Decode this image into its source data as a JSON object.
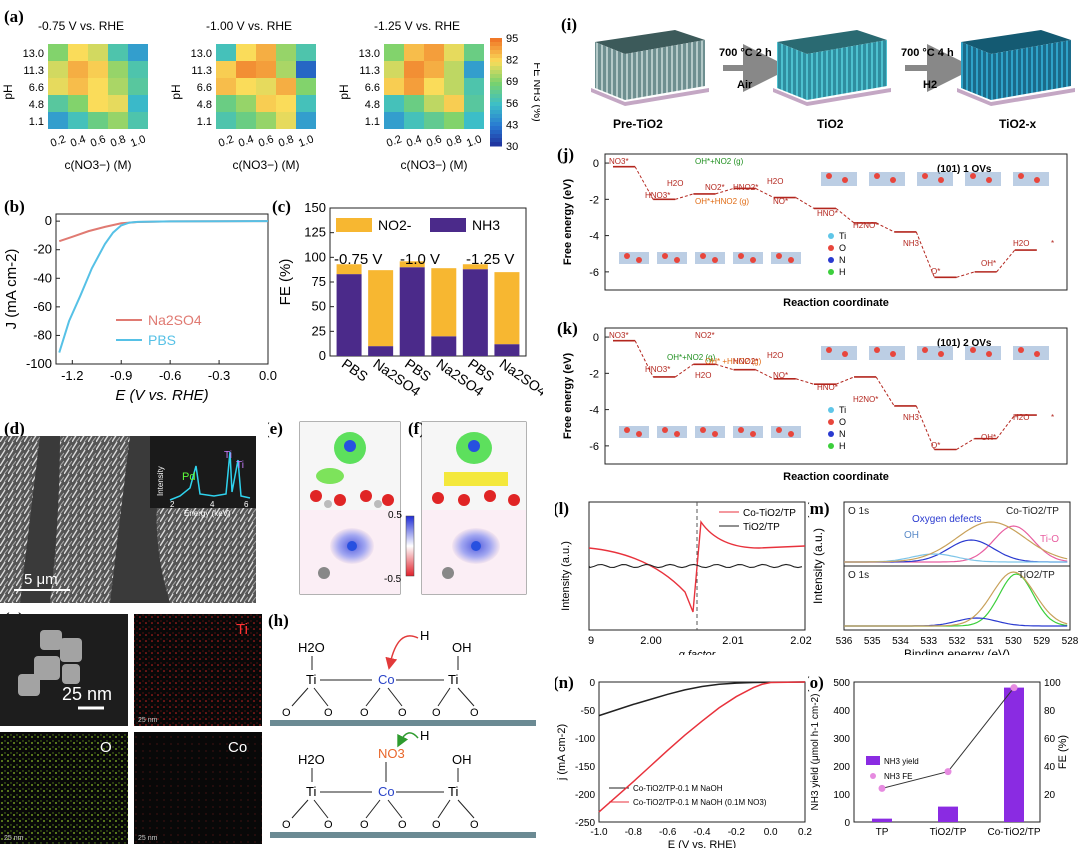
{
  "panel_labels": {
    "a": "(a)",
    "b": "(b)",
    "c": "(c)",
    "d": "(d)",
    "e": "(e)",
    "f": "(f)",
    "g": "(g)",
    "h": "(h)",
    "i": "(i)",
    "j": "(j)",
    "k": "(k)",
    "l": "(l)",
    "m": "(m)",
    "n": "(n)",
    "o": "(o)"
  },
  "colors": {
    "bar_orange": "#f7b731",
    "bar_purple": "#4b2a8a",
    "na2so4": "#e07a72",
    "pbs": "#56c1e6",
    "co_line": "#e8323c",
    "tio2_line": "#222222",
    "bar_violet": "#8a2be2"
  },
  "chart_data": [
    {
      "id": "a",
      "type": "heatmap",
      "titles": [
        "-0.75 V vs. RHE",
        "-1.00 V vs. RHE",
        "-1.25 V vs. RHE"
      ],
      "ylabel": "pH",
      "xlabel": "c(NO3−) (M)",
      "y_ticks": [
        "13.0",
        "11.3",
        "6.6",
        "4.8",
        "1.1"
      ],
      "x_ticks": [
        "0.2",
        "0.4",
        "0.6",
        "0.8",
        "1.0"
      ],
      "colorbar": {
        "label": "FE NH3 (%)",
        "ticks": [
          "95",
          "82",
          "69",
          "56",
          "43",
          "30"
        ],
        "range": [
          30,
          95
        ]
      },
      "maps": [
        [
          [
            70,
            82,
            78,
            60,
            50
          ],
          [
            78,
            88,
            84,
            72,
            60
          ],
          [
            80,
            86,
            82,
            74,
            62
          ],
          [
            62,
            70,
            82,
            80,
            55
          ],
          [
            50,
            58,
            66,
            72,
            60
          ]
        ],
        [
          [
            58,
            82,
            88,
            72,
            60
          ],
          [
            84,
            92,
            90,
            74,
            40
          ],
          [
            86,
            82,
            80,
            88,
            70
          ],
          [
            66,
            72,
            84,
            82,
            58
          ],
          [
            60,
            66,
            72,
            80,
            50
          ]
        ],
        [
          [
            70,
            86,
            90,
            80,
            66
          ],
          [
            78,
            92,
            88,
            76,
            50
          ],
          [
            84,
            90,
            82,
            76,
            60
          ],
          [
            58,
            66,
            76,
            84,
            62
          ],
          [
            50,
            58,
            64,
            70,
            56
          ]
        ]
      ]
    },
    {
      "id": "b",
      "type": "line",
      "xlabel": "E (V vs. RHE)",
      "ylabel": "J (mA cm-2)",
      "xlim": [
        -1.3,
        0.0
      ],
      "ylim": [
        -100,
        5
      ],
      "x_ticks": [
        "-1.2",
        "-0.9",
        "-0.6",
        "-0.3",
        "0.0"
      ],
      "y_ticks": [
        "0",
        "-20",
        "-40",
        "-60",
        "-80",
        "-100"
      ],
      "series": [
        {
          "name": "Na2SO4",
          "x": [
            -1.28,
            -1.2,
            -1.1,
            -1.0,
            -0.9,
            -0.8,
            -0.6,
            -0.3,
            0.0
          ],
          "y": [
            -14,
            -11,
            -7,
            -4,
            -1.5,
            -0.6,
            -0.2,
            -0.1,
            0
          ]
        },
        {
          "name": "PBS",
          "x": [
            -1.28,
            -1.22,
            -1.15,
            -1.08,
            -1.0,
            -0.95,
            -0.9,
            -0.85,
            -0.8,
            -0.6,
            -0.3,
            0.0
          ],
          "y": [
            -92,
            -70,
            -52,
            -33,
            -16,
            -8,
            -3,
            -1,
            -0.5,
            -0.2,
            -0.1,
            0
          ]
        }
      ]
    },
    {
      "id": "c",
      "type": "bar",
      "ylabel": "FE (%)",
      "ylim": [
        0,
        150
      ],
      "y_ticks": [
        "0",
        "25",
        "50",
        "75",
        "100",
        "125",
        "150"
      ],
      "categories": [
        "PBS",
        "Na2SO4",
        "PBS",
        "Na2SO4",
        "PBS",
        "Na2SO4"
      ],
      "group_labels": [
        "-0.75 V",
        "-1.0 V",
        "-1.25 V"
      ],
      "legend": [
        "NO2-",
        "NH3"
      ],
      "series": [
        {
          "name": "NH3",
          "values": [
            83,
            10,
            90,
            20,
            88,
            12
          ]
        },
        {
          "name": "NO2-",
          "values": [
            10,
            77,
            6,
            69,
            5,
            73
          ]
        }
      ]
    },
    {
      "id": "l",
      "type": "line",
      "xlabel": "g factor",
      "ylabel": "Intensity (a.u.)",
      "x_ticks": [
        "9",
        "2.00",
        "2.01",
        "2.02"
      ],
      "series": [
        {
          "name": "Co-TiO2/TP"
        },
        {
          "name": "TiO2/TP"
        }
      ]
    },
    {
      "id": "m",
      "type": "line",
      "xlabel": "Binding energy (eV)",
      "ylabel": "Intensity (a.u.)",
      "x_ticks": [
        "536",
        "535",
        "534",
        "533",
        "532",
        "531",
        "530",
        "529",
        "528"
      ],
      "annotations": [
        "O 1s",
        "Co-TiO2/TP",
        "Oxygen defects",
        "OH",
        "Ti-O",
        "O 1s",
        "TiO2/TP"
      ]
    },
    {
      "id": "n",
      "type": "line",
      "xlabel": "E (V vs. RHE)",
      "ylabel": "j (mA cm-2)",
      "xlim": [
        -1.0,
        0.2
      ],
      "ylim": [
        -250,
        0
      ],
      "x_ticks": [
        "-1.0",
        "-0.8",
        "-0.6",
        "-0.4",
        "-0.2",
        "0.0",
        "0.2"
      ],
      "y_ticks": [
        "0",
        "-50",
        "-100",
        "-150",
        "-200",
        "-250"
      ],
      "series": [
        {
          "name": "Co-TiO2/TP-0.1 M NaOH",
          "x": [
            -1.0,
            -0.9,
            -0.8,
            -0.7,
            -0.6,
            -0.5,
            -0.4,
            -0.3,
            -0.2,
            -0.1,
            0.0,
            0.2
          ],
          "y": [
            -60,
            -50,
            -40,
            -31,
            -22,
            -14,
            -8,
            -4,
            -2,
            -1,
            -0.5,
            0
          ]
        },
        {
          "name": "Co-TiO2/TP-0.1 M NaOH (0.1M NO3)",
          "x": [
            -1.0,
            -0.9,
            -0.8,
            -0.7,
            -0.6,
            -0.5,
            -0.4,
            -0.3,
            -0.2,
            -0.1,
            -0.05,
            0.0,
            0.2
          ],
          "y": [
            -232,
            -205,
            -178,
            -150,
            -122,
            -95,
            -70,
            -46,
            -26,
            -10,
            -4,
            -1,
            0
          ]
        }
      ]
    },
    {
      "id": "o",
      "type": "bar",
      "ylabel": "NH3 yield (μmol h-1 cm-2)",
      "y2label": "FE (%)",
      "ylim": [
        0,
        500
      ],
      "y2lim": [
        0,
        100
      ],
      "y_ticks": [
        "0",
        "100",
        "200",
        "300",
        "400",
        "500"
      ],
      "y2_ticks": [
        "20",
        "40",
        "60",
        "80",
        "100"
      ],
      "categories": [
        "TP",
        "TiO2/TP",
        "Co-TiO2/TP"
      ],
      "legend": [
        "NH3 yield",
        "NH3 FE"
      ],
      "series": [
        {
          "name": "NH3 yield",
          "values": [
            12,
            55,
            480
          ]
        },
        {
          "name": "NH3 FE",
          "values": [
            24,
            36,
            96
          ]
        }
      ]
    },
    {
      "id": "j",
      "type": "line",
      "xlabel": "Reaction coordinate",
      "ylabel": "Free energy (eV)",
      "title": "(101) 1 OVs",
      "ylim": [
        -7,
        0.5
      ],
      "y_ticks": [
        "0",
        "-2",
        "-4",
        "-6"
      ],
      "labels": [
        "NO3*",
        "HNO3*",
        "H2O",
        "NO2*",
        "OH*+NO2 (g)",
        "OH*+HNO2 (g)",
        "HNO2*",
        "H2O",
        "NO*",
        "HNO*",
        "H2NO*",
        "NH3",
        "O*",
        "OH*",
        "H2O",
        "*"
      ],
      "legend": [
        "Ti",
        "O",
        "N",
        "H"
      ],
      "levels": [
        -0.2,
        -2.0,
        -1.7,
        -1.4,
        -1.9,
        -2.5,
        -3.3,
        -3.8,
        -6.3,
        -6.0,
        -4.8
      ]
    },
    {
      "id": "k",
      "type": "line",
      "xlabel": "Reaction coordinate",
      "ylabel": "Free energy (eV)",
      "title": "(101) 2 OVs",
      "ylim": [
        -7,
        0.5
      ],
      "y_ticks": [
        "0",
        "-2",
        "-4",
        "-6"
      ],
      "labels": [
        "NO3*",
        "HNO3*",
        "OH*+NO2 (g)",
        "OH* +HNO2 (g)",
        "NO2*",
        "H2O",
        "HNO2*",
        "H2O",
        "NO*",
        "HNO*",
        "H2NO*",
        "NH3",
        "O*",
        "OH*",
        "H2O",
        "*"
      ],
      "legend": [
        "Ti",
        "O",
        "N",
        "H"
      ],
      "levels": [
        -0.2,
        -2.2,
        -1.5,
        -1.8,
        -2.3,
        -2.6,
        -2.2,
        -3.8,
        -6.2,
        -5.6,
        -4.3
      ]
    }
  ],
  "panel_i": {
    "steps": [
      "Pre-TiO2",
      "TiO2",
      "TiO2-x"
    ],
    "arrow1_top": "700 °C 2 h",
    "arrow1_bottom": "Air",
    "arrow2_top": "700 °C 4 h",
    "arrow2_bottom": "H2"
  },
  "panel_d": {
    "scale": "5 μm",
    "inset_ylabel": "Intensity",
    "inset_xlabel": "Energy (keV)",
    "inset_ticks": [
      "2",
      "4",
      "6"
    ],
    "pd": "Pd",
    "ti1": "Ti",
    "ti2": "Ti"
  },
  "panel_ef": {
    "ticks": [
      "0.5",
      "-0.5"
    ]
  },
  "panel_g": {
    "scale": "25 nm",
    "ti": "Ti",
    "o": "O",
    "co": "Co",
    "small": "25 nm"
  },
  "panel_h": {
    "h2o": "H2O",
    "h": "H",
    "oh": "OH",
    "ti": "Ti",
    "co": "Co",
    "no3": "NO3",
    "o": "O"
  }
}
